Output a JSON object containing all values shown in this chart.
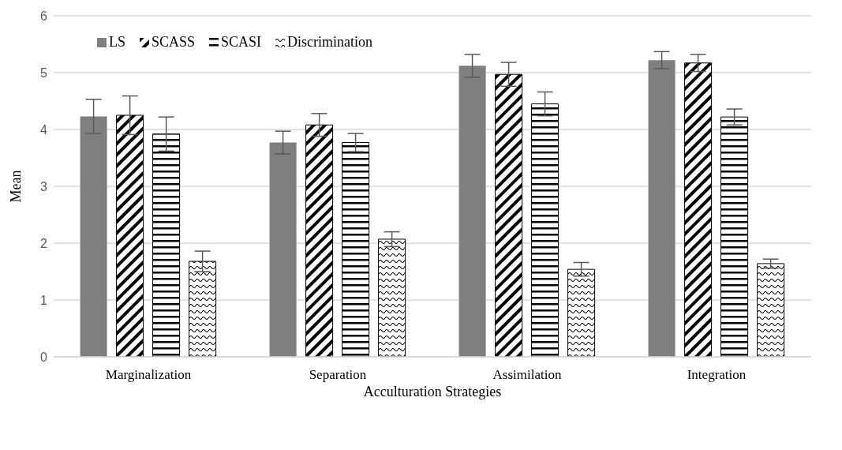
{
  "chart_data": {
    "type": "bar",
    "xlabel": "Acculturation Strategies",
    "ylabel": "Mean",
    "categories": [
      "Marginalization",
      "Separation",
      "Assimilation",
      "Integration"
    ],
    "series": [
      {
        "name": "LS",
        "color": "#7f7f7f",
        "values": [
          4.23,
          3.77,
          5.12,
          5.22
        ],
        "errors": [
          0.3,
          0.2,
          0.2,
          0.15
        ]
      },
      {
        "name": "SCASS",
        "color": "#000000",
        "values": [
          4.25,
          4.08,
          4.97,
          5.17
        ],
        "errors": [
          0.34,
          0.2,
          0.21,
          0.15
        ]
      },
      {
        "name": "SCASI",
        "color": "#000000",
        "values": [
          3.92,
          3.77,
          4.45,
          4.22
        ],
        "errors": [
          0.3,
          0.16,
          0.21,
          0.14
        ]
      },
      {
        "name": "Discrimination",
        "color": "#000000",
        "values": [
          1.68,
          2.07,
          1.54,
          1.64
        ],
        "errors": [
          0.18,
          0.13,
          0.12,
          0.08
        ]
      }
    ],
    "ylim": [
      0,
      6
    ],
    "yticks": [
      0,
      1,
      2,
      3,
      4,
      5,
      6
    ],
    "grid": "y",
    "legend": "top left"
  }
}
